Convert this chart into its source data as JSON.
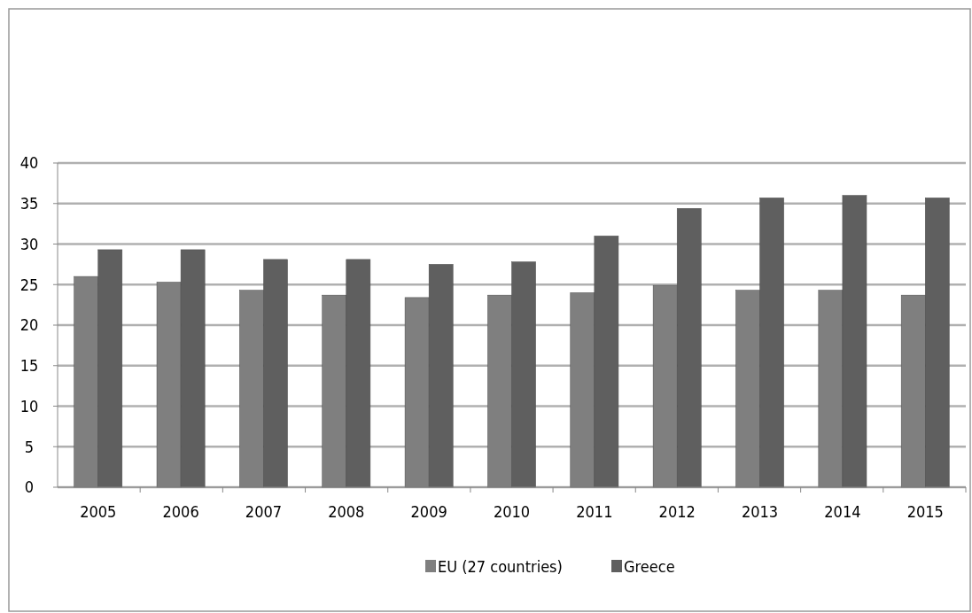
{
  "chart_data": {
    "type": "bar",
    "categories": [
      "2005",
      "2006",
      "2007",
      "2008",
      "2009",
      "2010",
      "2011",
      "2012",
      "2013",
      "2014",
      "2015"
    ],
    "series": [
      {
        "name": "EU (27 countries)",
        "color": "#7f7f7f",
        "values": [
          26.0,
          25.3,
          24.3,
          23.7,
          23.4,
          23.7,
          24.0,
          24.9,
          24.3,
          24.3,
          23.7
        ]
      },
      {
        "name": "Greece",
        "color": "#5f5f5f",
        "values": [
          29.3,
          29.3,
          28.1,
          28.1,
          27.5,
          27.8,
          31.0,
          34.4,
          35.7,
          36.0,
          35.7
        ]
      }
    ],
    "ylim": [
      0,
      40
    ],
    "yticks": [
      0,
      5,
      10,
      15,
      20,
      25,
      30,
      35,
      40
    ],
    "grid": "y",
    "legend": "bottom"
  }
}
